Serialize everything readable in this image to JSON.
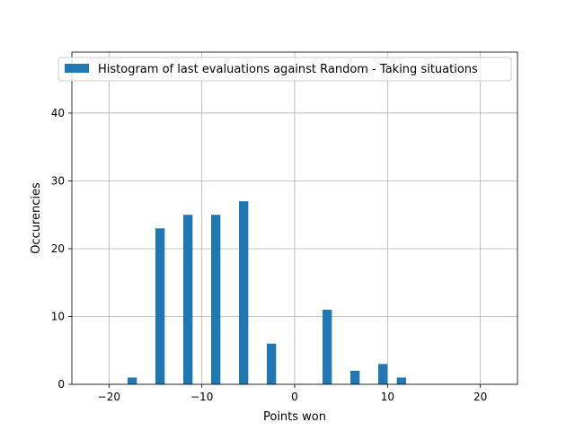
{
  "chart_data": {
    "type": "bar",
    "x": [
      -17.5,
      -14.5,
      -11.5,
      -8.5,
      -5.5,
      -2.5,
      3.5,
      6.5,
      9.5,
      11.5
    ],
    "values": [
      1,
      23,
      25,
      25,
      27,
      6,
      11,
      2,
      3,
      1
    ],
    "bar_width": 1.0,
    "xlabel": "Points won",
    "ylabel": "Occurencies",
    "xlim": [
      -24,
      24
    ],
    "ylim": [
      0,
      49
    ],
    "xticks": [
      -20,
      -10,
      0,
      10,
      20
    ],
    "xtick_labels": [
      "−20",
      "−10",
      "0",
      "10",
      "20"
    ],
    "yticks": [
      0,
      10,
      20,
      30,
      40
    ],
    "ytick_labels": [
      "0",
      "10",
      "20",
      "30",
      "40"
    ],
    "grid": true,
    "legend": {
      "placement": "top-right",
      "entries": [
        {
          "label": "Histogram of last evaluations against Random - Taking situations",
          "color": "#1f77b4"
        }
      ]
    },
    "colors": {
      "bar": "#1f77b4"
    }
  }
}
